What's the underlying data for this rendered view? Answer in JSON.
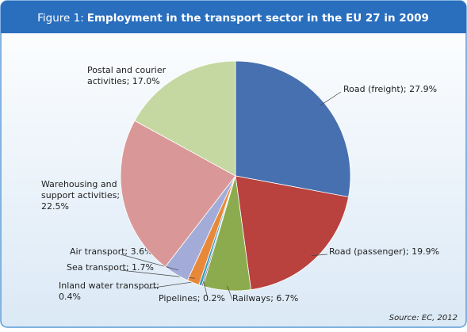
{
  "chart_data": {
    "type": "pie",
    "figure_label": "Figure 1:",
    "title": "Employment in the transport sector in the EU 27 in 2009",
    "source": "Source: EC, 2012",
    "values": [
      27.9,
      19.9,
      6.7,
      0.2,
      0.4,
      1.7,
      3.6,
      22.5,
      17.0
    ],
    "value_labels": [
      "Road (freight); 27.9%",
      "Road (passenger); 19.9%",
      "Railways; 6.7%",
      "Pipelines; 0.2%",
      "Inland water transport; 0.4%",
      "Sea transport; 1.7%",
      "Air transport; 3.6%",
      "Warehousing and support activities; 22.5%",
      "Postal and courier activities; 17.0%"
    ],
    "colors": [
      "#4670b0",
      "#b9413e",
      "#8cab4f",
      "#6b5a92",
      "#3a9fc0",
      "#e8893a",
      "#a3acd8",
      "#d99897",
      "#c5d8a2"
    ]
  }
}
